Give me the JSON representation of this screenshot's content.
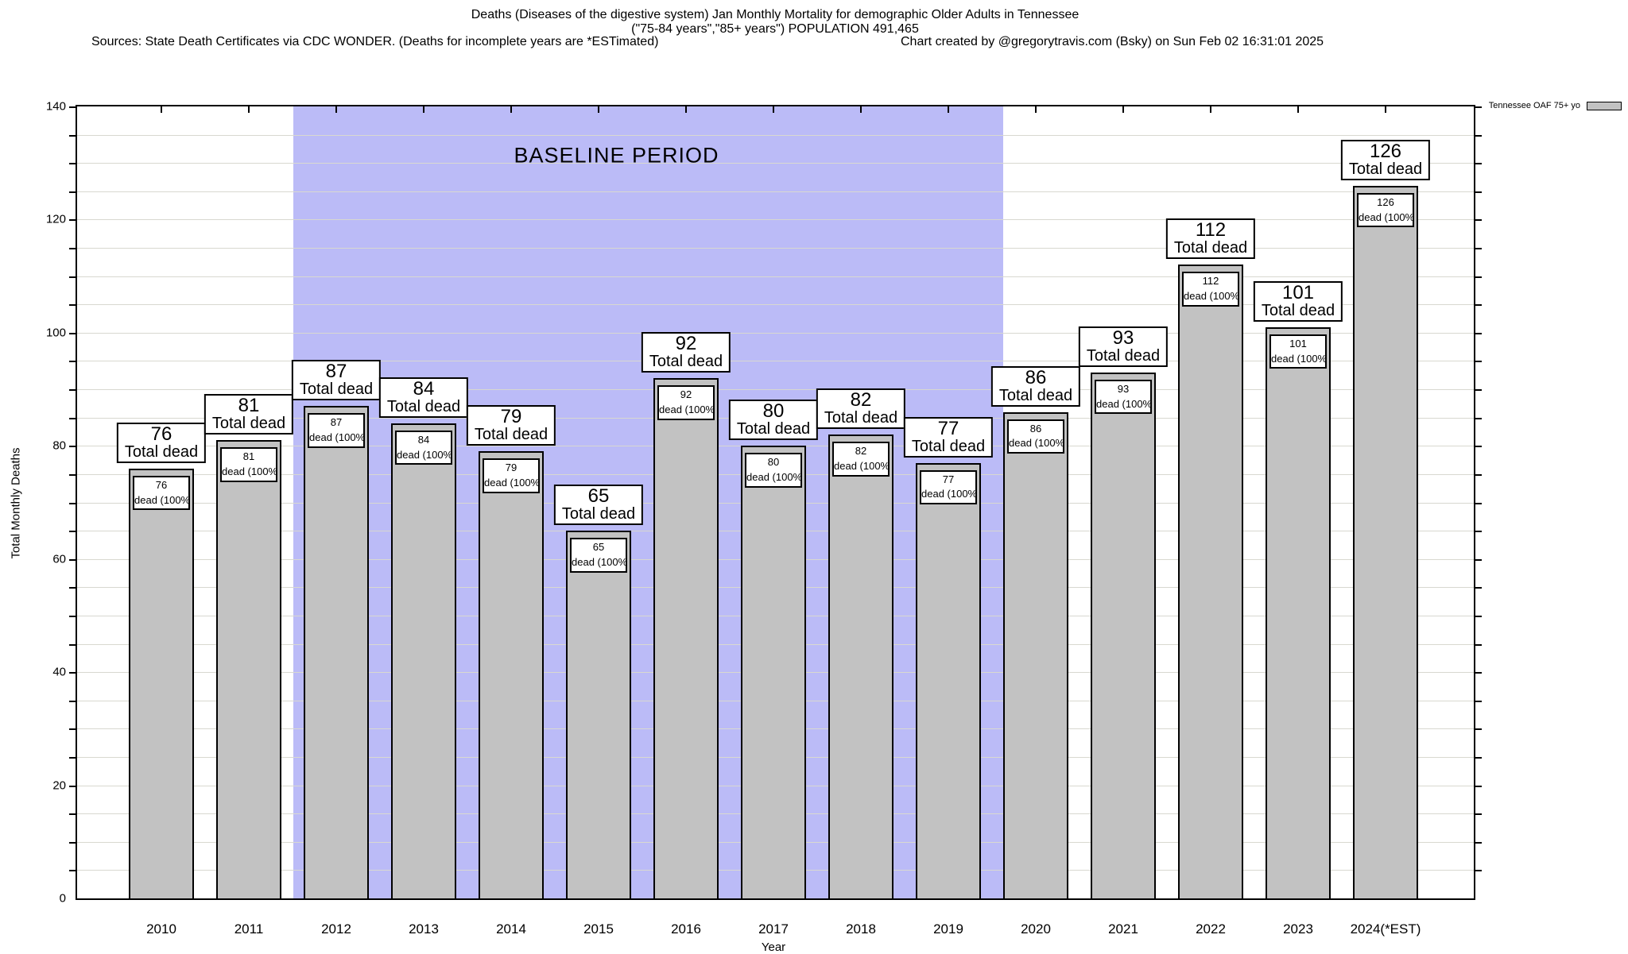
{
  "header": {
    "title_line1": "Deaths (Diseases of the digestive system) Jan Monthly Mortality for demographic Older Adults in Tennessee",
    "title_line2": "(\"75-84 years\",\"85+ years\") POPULATION 491,465",
    "sources": "Sources: State Death Certificates via CDC WONDER. (Deaths for incomplete years are *ESTimated)",
    "credit": "Chart created by @gregorytravis.com (Bsky) on Sun Feb 02 16:31:01 2025"
  },
  "legend": {
    "label": "Tennessee OAF 75+ yo"
  },
  "chart_data": {
    "type": "bar",
    "title": "Deaths (Diseases of the digestive system) Jan Monthly Mortality for demographic Older Adults in Tennessee",
    "subtitle": "(\"75-84 years\",\"85+ years\") POPULATION 491,465",
    "categories": [
      "2010",
      "2011",
      "2012",
      "2013",
      "2014",
      "2015",
      "2016",
      "2017",
      "2018",
      "2019",
      "2020",
      "2021",
      "2022",
      "2023",
      "2024(*EST)"
    ],
    "series": [
      {
        "name": "Tennessee OAF 75+ yo",
        "values": [
          76,
          81,
          87,
          84,
          79,
          65,
          92,
          80,
          82,
          77,
          86,
          93,
          112,
          101,
          126
        ]
      }
    ],
    "bar_total_label_suffix": "Total dead",
    "bar_inner_label_suffix": "dead (100%)",
    "xlabel": "Year",
    "ylabel": "Total Monthly Deaths",
    "ylim": [
      0,
      140
    ],
    "y_major_step": 20,
    "y_minor_step": 5,
    "grid": true,
    "legend_position": "top-right-outside",
    "baseline": {
      "label": "BASELINE PERIOD",
      "start_category": "2012",
      "end_category": "2019"
    },
    "colors": {
      "bar_fill": "#c2c2c2",
      "bar_border": "#000000",
      "baseline_fill": "#bbbbf7",
      "grid": "#d8d8d0",
      "label_box_bg": "#ffffff"
    }
  }
}
